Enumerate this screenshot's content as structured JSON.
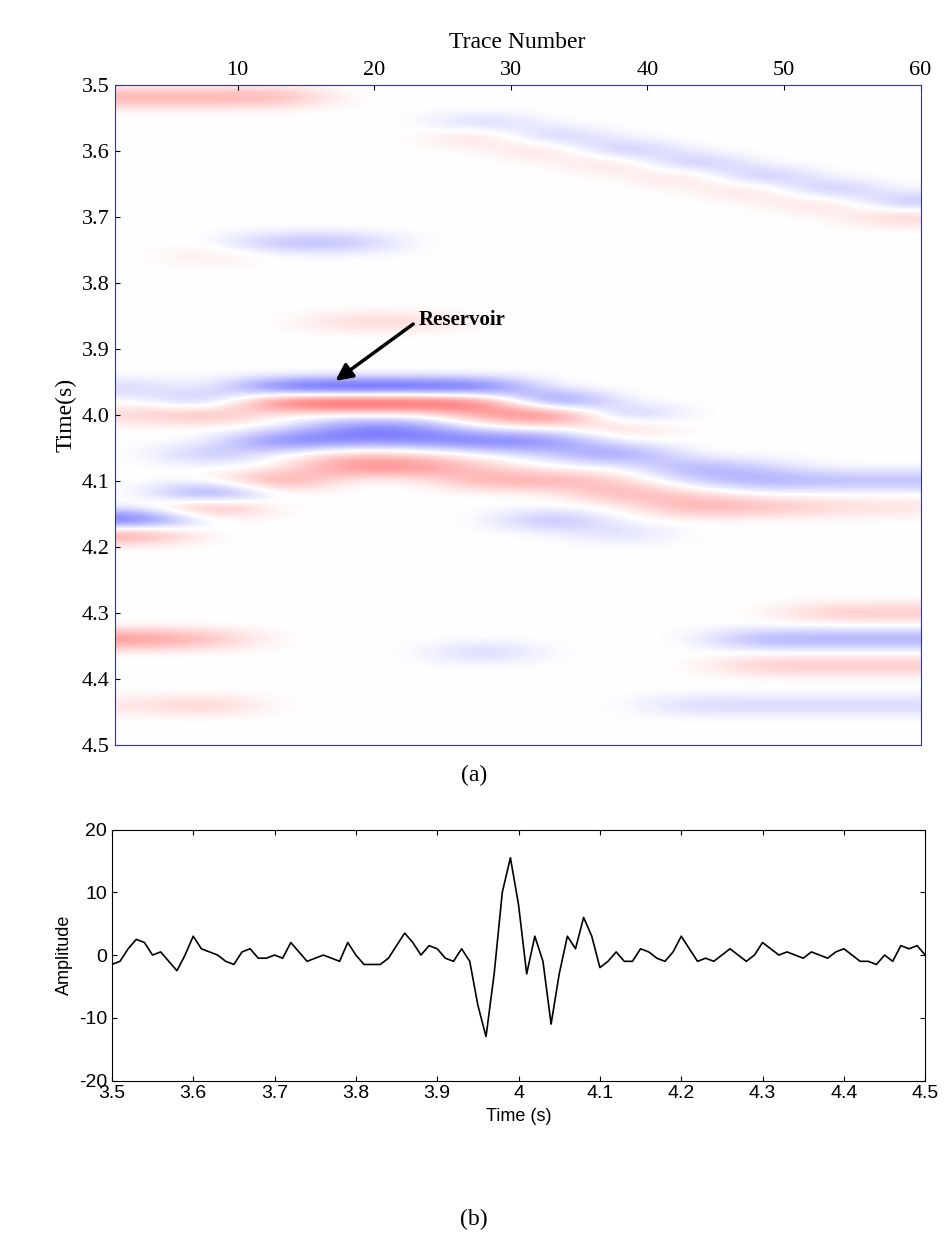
{
  "chart_data": [
    {
      "type": "heatmap",
      "panel_label": "(a)",
      "xlabel": "Trace Number",
      "ylabel": "Time(s)",
      "xlim": [
        1,
        60
      ],
      "xticks": [
        10,
        20,
        30,
        40,
        50,
        60
      ],
      "ylim": [
        4.5,
        3.5
      ],
      "yticks": [
        3.5,
        3.6,
        3.7,
        3.8,
        3.9,
        4.0,
        4.1,
        4.2,
        4.3,
        4.4,
        4.5
      ],
      "color_range": [
        -15,
        15
      ],
      "annotations": [
        {
          "text": "Reservoir",
          "x": 17,
          "y": 3.95
        }
      ],
      "cell_x": [
        3,
        8,
        13,
        18,
        23,
        28,
        33,
        38,
        43,
        48,
        53,
        58
      ],
      "cell_y": [
        3.5,
        3.52,
        3.54,
        3.56,
        3.58,
        3.6,
        3.62,
        3.64,
        3.66,
        3.68,
        3.7,
        3.72,
        3.74,
        3.76,
        3.78,
        3.8,
        3.82,
        3.84,
        3.86,
        3.88,
        3.9,
        3.92,
        3.94,
        3.96,
        3.98,
        4.0,
        4.02,
        4.04,
        4.06,
        4.08,
        4.1,
        4.12,
        4.14,
        4.16,
        4.18,
        4.2,
        4.22,
        4.24,
        4.26,
        4.28,
        4.3,
        4.32,
        4.34,
        4.36,
        4.38,
        4.4,
        4.42,
        4.44,
        4.46,
        4.48,
        4.5
      ],
      "cells": [
        [
          0,
          0,
          0,
          0,
          0,
          0,
          0,
          0,
          0,
          0,
          0,
          0
        ],
        [
          6,
          6,
          6,
          0,
          0,
          0,
          0,
          0,
          0,
          0,
          0,
          0
        ],
        [
          0,
          0,
          0,
          0,
          0,
          0,
          0,
          0,
          0,
          0,
          0,
          0
        ],
        [
          0,
          0,
          0,
          0,
          0,
          -4,
          0,
          0,
          0,
          0,
          0,
          0
        ],
        [
          0,
          0,
          0,
          0,
          0,
          4,
          -5,
          0,
          0,
          0,
          0,
          0
        ],
        [
          0,
          0,
          0,
          0,
          0,
          0,
          4,
          -6,
          0,
          0,
          0,
          0
        ],
        [
          0,
          0,
          0,
          0,
          0,
          0,
          0,
          4,
          -6,
          0,
          0,
          0
        ],
        [
          0,
          0,
          0,
          0,
          0,
          0,
          0,
          0,
          4,
          -6,
          0,
          0
        ],
        [
          0,
          0,
          0,
          0,
          0,
          0,
          0,
          0,
          0,
          4,
          -6,
          0
        ],
        [
          0,
          0,
          0,
          0,
          0,
          0,
          0,
          0,
          0,
          0,
          4,
          -5
        ],
        [
          0,
          0,
          0,
          0,
          0,
          0,
          0,
          0,
          0,
          0,
          0,
          4
        ],
        [
          0,
          0,
          0,
          0,
          0,
          0,
          0,
          0,
          0,
          0,
          0,
          0
        ],
        [
          0,
          0,
          -5,
          -5,
          0,
          0,
          0,
          0,
          0,
          0,
          0,
          0
        ],
        [
          0,
          2,
          0,
          0,
          0,
          0,
          0,
          0,
          0,
          0,
          0,
          0
        ],
        [
          0,
          0,
          0,
          0,
          0,
          0,
          0,
          0,
          0,
          0,
          0,
          0
        ],
        [
          0,
          0,
          0,
          0,
          0,
          0,
          0,
          0,
          0,
          0,
          0,
          0
        ],
        [
          0,
          0,
          0,
          0,
          0,
          0,
          0,
          0,
          0,
          0,
          0,
          0
        ],
        [
          0,
          0,
          0,
          0,
          0,
          0,
          0,
          0,
          0,
          0,
          0,
          0
        ],
        [
          0,
          0,
          0,
          3,
          3,
          0,
          0,
          0,
          0,
          0,
          0,
          0
        ],
        [
          0,
          0,
          0,
          0,
          0,
          0,
          0,
          0,
          0,
          0,
          0,
          0
        ],
        [
          0,
          0,
          0,
          0,
          0,
          0,
          0,
          0,
          0,
          0,
          0,
          0
        ],
        [
          0,
          0,
          0,
          0,
          0,
          0,
          0,
          0,
          0,
          0,
          0,
          0
        ],
        [
          0,
          0,
          0,
          0,
          0,
          0,
          0,
          0,
          0,
          0,
          0,
          0
        ],
        [
          -3,
          0,
          -12,
          -14,
          -13,
          -12,
          0,
          0,
          0,
          0,
          0,
          0
        ],
        [
          0,
          -6,
          12,
          14,
          13,
          10,
          -12,
          0,
          0,
          0,
          0,
          0
        ],
        [
          3,
          6,
          0,
          0,
          0,
          6,
          12,
          -6,
          0,
          0,
          0,
          0
        ],
        [
          0,
          0,
          0,
          -8,
          -8,
          0,
          0,
          4,
          0,
          0,
          0,
          0
        ],
        [
          0,
          0,
          -10,
          -8,
          -8,
          -10,
          -8,
          0,
          0,
          0,
          0,
          0
        ],
        [
          0,
          -5,
          0,
          4,
          3,
          0,
          -3,
          -8,
          0,
          0,
          0,
          0
        ],
        [
          0,
          0,
          0,
          8,
          8,
          3,
          0,
          0,
          -6,
          -3,
          0,
          0
        ],
        [
          0,
          0,
          8,
          0,
          0,
          6,
          6,
          3,
          -3,
          -6,
          -5,
          -5
        ],
        [
          0,
          -10,
          0,
          0,
          0,
          0,
          0,
          6,
          3,
          0,
          0,
          0
        ],
        [
          0,
          8,
          0,
          0,
          0,
          0,
          0,
          0,
          6,
          5,
          3,
          2
        ],
        [
          -12,
          0,
          0,
          0,
          0,
          0,
          -6,
          0,
          0,
          0,
          0,
          0
        ],
        [
          8,
          0,
          0,
          0,
          0,
          0,
          0,
          -3,
          0,
          0,
          0,
          0
        ],
        [
          0,
          0,
          0,
          0,
          0,
          0,
          0,
          0,
          0,
          0,
          0,
          0
        ],
        [
          0,
          0,
          0,
          0,
          0,
          0,
          0,
          0,
          0,
          0,
          0,
          0
        ],
        [
          0,
          0,
          0,
          0,
          0,
          0,
          0,
          0,
          0,
          0,
          0,
          0
        ],
        [
          0,
          0,
          0,
          0,
          0,
          0,
          0,
          0,
          0,
          0,
          0,
          0
        ],
        [
          0,
          0,
          0,
          0,
          0,
          0,
          0,
          0,
          0,
          0,
          0,
          0
        ],
        [
          0,
          0,
          0,
          0,
          0,
          0,
          0,
          0,
          0,
          0,
          4,
          4
        ],
        [
          0,
          0,
          0,
          0,
          0,
          0,
          0,
          0,
          0,
          0,
          0,
          0
        ],
        [
          8,
          5,
          0,
          0,
          0,
          0,
          0,
          0,
          0,
          -6,
          -6,
          -6
        ],
        [
          0,
          0,
          0,
          0,
          0,
          -4,
          0,
          0,
          0,
          0,
          0,
          0
        ],
        [
          0,
          0,
          0,
          0,
          0,
          0,
          0,
          0,
          0,
          4,
          4,
          4
        ],
        [
          0,
          0,
          0,
          0,
          0,
          0,
          0,
          0,
          0,
          0,
          0,
          0
        ],
        [
          0,
          0,
          0,
          0,
          0,
          0,
          0,
          0,
          0,
          0,
          0,
          0
        ],
        [
          2,
          4,
          0,
          0,
          0,
          0,
          0,
          0,
          -3,
          -3,
          -3,
          -3
        ],
        [
          0,
          0,
          0,
          0,
          0,
          0,
          0,
          0,
          0,
          0,
          0,
          0
        ],
        [
          0,
          0,
          0,
          0,
          0,
          0,
          0,
          0,
          0,
          0,
          0,
          0
        ],
        [
          0,
          0,
          0,
          0,
          0,
          0,
          0,
          0,
          0,
          0,
          0,
          0
        ]
      ]
    },
    {
      "type": "line",
      "panel_label": "(b)",
      "xlabel": "Time (s)",
      "ylabel": "Amplitude",
      "xlim": [
        3.5,
        4.5
      ],
      "xticks": [
        3.5,
        3.6,
        3.7,
        3.8,
        3.9,
        4,
        4.1,
        4.2,
        4.3,
        4.4,
        4.5
      ],
      "ylim": [
        -20,
        20
      ],
      "yticks": [
        -20,
        -10,
        0,
        10,
        20
      ],
      "color": "#000000",
      "x": [
        3.5,
        3.51,
        3.52,
        3.53,
        3.54,
        3.55,
        3.56,
        3.57,
        3.58,
        3.59,
        3.6,
        3.61,
        3.62,
        3.63,
        3.64,
        3.65,
        3.66,
        3.67,
        3.68,
        3.69,
        3.7,
        3.71,
        3.72,
        3.73,
        3.74,
        3.75,
        3.76,
        3.77,
        3.78,
        3.79,
        3.8,
        3.81,
        3.82,
        3.83,
        3.84,
        3.85,
        3.86,
        3.87,
        3.88,
        3.89,
        3.9,
        3.91,
        3.92,
        3.93,
        3.94,
        3.95,
        3.96,
        3.97,
        3.98,
        3.99,
        4.0,
        4.01,
        4.02,
        4.03,
        4.04,
        4.05,
        4.06,
        4.07,
        4.08,
        4.09,
        4.1,
        4.11,
        4.12,
        4.13,
        4.14,
        4.15,
        4.16,
        4.17,
        4.18,
        4.19,
        4.2,
        4.21,
        4.22,
        4.23,
        4.24,
        4.25,
        4.26,
        4.27,
        4.28,
        4.29,
        4.3,
        4.31,
        4.32,
        4.33,
        4.34,
        4.35,
        4.36,
        4.37,
        4.38,
        4.39,
        4.4,
        4.41,
        4.42,
        4.43,
        4.44,
        4.45,
        4.46,
        4.47,
        4.48,
        4.49,
        4.5
      ],
      "values": [
        -1.5,
        -1,
        1,
        2.5,
        2,
        0,
        0.5,
        -1,
        -2.5,
        0,
        3,
        1,
        0.5,
        0,
        -1,
        -1.5,
        0.5,
        1,
        -0.5,
        -0.5,
        0,
        -0.5,
        2,
        0.5,
        -1,
        -0.5,
        0,
        -0.5,
        -1,
        2,
        0,
        -1.5,
        -1.5,
        -1.5,
        -0.5,
        1.5,
        3.5,
        2,
        0,
        1.5,
        1,
        -0.5,
        -1,
        1,
        -1,
        -8,
        -13,
        -3,
        10,
        15.5,
        8,
        -3,
        3,
        -1,
        -11,
        -3,
        3,
        1,
        6,
        3,
        -2,
        -1,
        0.5,
        -1,
        -1,
        1,
        0.5,
        -0.5,
        -1,
        0.5,
        3,
        1,
        -1,
        -0.5,
        -1,
        0,
        1,
        0,
        -1,
        0,
        2,
        1,
        0,
        0.5,
        0,
        -0.5,
        0.5,
        0,
        -0.5,
        0.5,
        1,
        0,
        -1,
        -1,
        -1.5,
        0,
        -1,
        1.5,
        1,
        1.5,
        0
      ]
    }
  ]
}
